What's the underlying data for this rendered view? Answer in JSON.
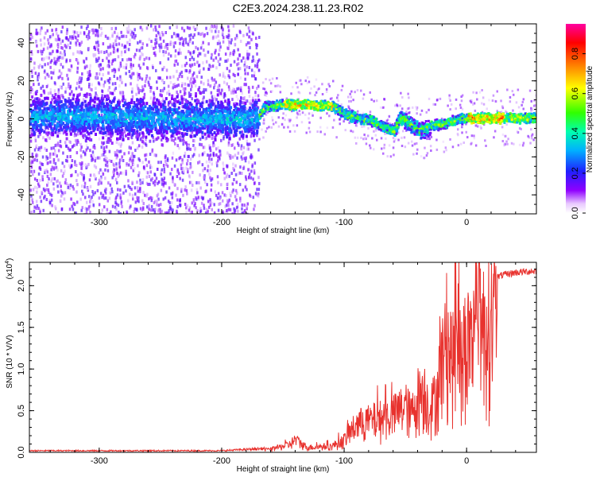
{
  "title": "C2E3.2024.238.11.23.R02",
  "colors": {
    "snr_line": "#e8322e",
    "cmap": [
      "#ffffff",
      "#f0e0ff",
      "#8000ff",
      "#3030ff",
      "#00c0ff",
      "#00ff80",
      "#60ff00",
      "#ffff00",
      "#ff8000",
      "#ff0000",
      "#ff00a0"
    ]
  },
  "chart_data": [
    {
      "type": "heatmap",
      "xlabel": "Height of straight line (km)",
      "ylabel": "Frequency (Hz)",
      "xlim": [
        -357,
        57
      ],
      "ylim": [
        -50,
        50
      ],
      "xticks": [
        -300,
        -200,
        -100,
        0
      ],
      "yticks": [
        -40,
        -20,
        0,
        20,
        40
      ],
      "colorbar": {
        "label": "Normalized spectral amplitude",
        "range": [
          0.0,
          0.95
        ],
        "ticks": [
          "0.0",
          "0.2",
          "0.4",
          "0.6",
          "0.8"
        ]
      },
      "ridge": {
        "x": [
          -357,
          -300,
          -250,
          -200,
          -172,
          -165,
          -150,
          -130,
          -110,
          -100,
          -90,
          -80,
          -70,
          -60,
          -55,
          -50,
          -45,
          -40,
          -35,
          -30,
          -20,
          -10,
          0,
          10,
          20,
          40,
          57
        ],
        "y": [
          2,
          2,
          1,
          1,
          1,
          7,
          8,
          8,
          7,
          3,
          1,
          0,
          -3,
          -6,
          1,
          0,
          -3,
          -5,
          -5,
          -3,
          -2,
          0,
          1,
          1,
          1,
          1,
          1
        ]
      }
    },
    {
      "type": "line",
      "xlabel": "Height of straight line (km)",
      "ylabel": "SNR (10 * V/V)",
      "multiplier": "(x10",
      "multiplier_exp": "4",
      "multiplier_close": ")",
      "xlim": [
        -357,
        57
      ],
      "ylim": [
        0,
        2.28
      ],
      "xticks": [
        -300,
        -200,
        -100,
        0
      ],
      "yticks": [
        "0.0",
        "0.5",
        "1.0",
        "1.5",
        "2.0"
      ],
      "envelope": {
        "x": [
          -357,
          -200,
          -160,
          -145,
          -140,
          -130,
          -110,
          -100,
          -90,
          -80,
          -70,
          -60,
          -50,
          -45,
          -40,
          -35,
          -30,
          -25,
          -20,
          -15,
          -10,
          -5,
          0,
          5,
          10,
          20,
          30,
          40,
          57
        ],
        "y": [
          0.02,
          0.02,
          0.05,
          0.12,
          0.2,
          0.08,
          0.1,
          0.2,
          0.45,
          0.5,
          0.55,
          0.6,
          0.75,
          0.6,
          0.9,
          1.0,
          0.7,
          0.9,
          1.5,
          1.7,
          1.4,
          1.65,
          1.75,
          1.85,
          1.95,
          2.1,
          2.15,
          2.18,
          2.2
        ]
      }
    }
  ]
}
